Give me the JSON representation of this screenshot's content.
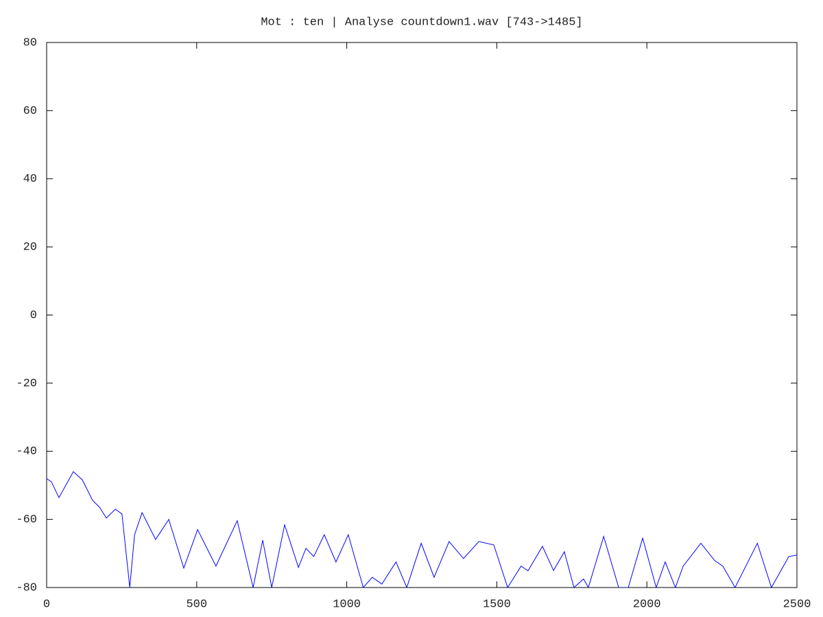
{
  "chart_data": {
    "type": "line",
    "title": "Mot : ten   | Analyse countdown1.wav [743->1485]",
    "x": [
      0,
      16,
      41,
      89,
      119,
      153,
      176,
      199,
      229,
      251,
      277,
      293,
      318,
      363,
      407,
      457,
      503,
      564,
      635,
      688,
      720,
      750,
      793,
      839,
      864,
      890,
      925,
      964,
      1005,
      1055,
      1085,
      1117,
      1164,
      1200,
      1248,
      1291,
      1341,
      1389,
      1440,
      1490,
      1536,
      1581,
      1604,
      1652,
      1689,
      1725,
      1757,
      1789,
      1805,
      1856,
      1906,
      1938,
      1986,
      2031,
      2061,
      2095,
      2121,
      2180,
      2226,
      2253,
      2294,
      2368,
      2415,
      2473,
      2500
    ],
    "series": [
      {
        "color": "#0000ff",
        "values": [
          -48,
          -49,
          -53.6,
          -46,
          -48.4,
          -54.4,
          -56.4,
          -59.6,
          -57,
          -58.4,
          -80,
          -64.5,
          -58,
          -65.9,
          -60,
          -74.3,
          -63,
          -73.7,
          -60.4,
          -80,
          -66.1,
          -80,
          -61.6,
          -74.1,
          -68.5,
          -70.9,
          -64.5,
          -72.5,
          -64.5,
          -80,
          -77,
          -79,
          -72.5,
          -80,
          -67,
          -77,
          -66.5,
          -71.5,
          -66.5,
          -67.5,
          -80,
          -73.7,
          -75.1,
          -67.9,
          -75,
          -69.5,
          -80,
          -77.5,
          -80,
          -65,
          -80,
          -80,
          -65.5,
          -80,
          -72.5,
          -80,
          -73.7,
          -67,
          -72.1,
          -73.7,
          -80,
          -67,
          -80,
          -70.9,
          -70.5
        ]
      }
    ],
    "xlim": [
      0,
      2500
    ],
    "xticks": [
      0,
      500,
      1000,
      1500,
      2000,
      2500
    ],
    "ylim": [
      -80,
      80
    ],
    "yticks": [
      -80,
      -60,
      -40,
      -20,
      0,
      20,
      40,
      60,
      80
    ]
  }
}
